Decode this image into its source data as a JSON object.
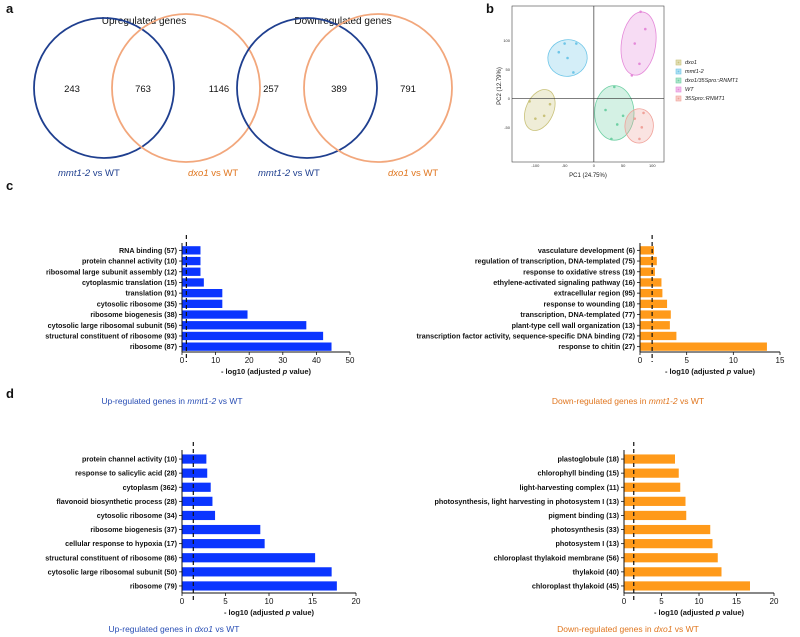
{
  "panels": {
    "a": "a",
    "b": "b",
    "c": "c",
    "d": "d"
  },
  "colors": {
    "blue": "#0b35ff",
    "orange": "#ff9a1a",
    "venn_blue": "#1f3f8f",
    "venn_orange": "#f2a77c",
    "cap_blue": "#2a4fb5",
    "cap_orange": "#e0761f"
  },
  "venn": [
    {
      "title": "Upregulated genes",
      "left": "243",
      "mid": "763",
      "right": "1146",
      "label_left_a": "mmt1-2",
      "label_left_b": " vs WT",
      "label_right_a": "dxo1",
      "label_right_b": "  vs WT"
    },
    {
      "title": "Downregulated genes",
      "left": "257",
      "mid": "389",
      "right": "791",
      "label_left_a": "mmt1-2",
      "label_left_b": "  vs WT",
      "label_right_a": "dxo1",
      "label_right_b": "  vs WT"
    }
  ],
  "pca": {
    "xlabel": "PC1 (24.75%)",
    "ylabel": "PC2 (12.79%)",
    "xticks": [
      "-100",
      "-50",
      "0",
      "50",
      "100"
    ],
    "yticks": [
      "-50",
      "0",
      "50",
      "100"
    ],
    "legend": [
      {
        "name": "dxo1",
        "color": "#c9c27a"
      },
      {
        "name": "mmt1-2",
        "color": "#6fc6e8"
      },
      {
        "name": "dxo1/35Spro::RNMT1",
        "color": "#6fd0a4"
      },
      {
        "name": "WT",
        "color": "#e58ad9"
      },
      {
        "name": "35Spro::RNMT1",
        "color": "#f0a29a"
      }
    ],
    "groups": [
      {
        "name": "dxo1",
        "points": [
          [
            -110,
            -5
          ],
          [
            -85,
            -30
          ],
          [
            -75,
            -10
          ],
          [
            -100,
            -35
          ]
        ]
      },
      {
        "name": "mmt1-2",
        "points": [
          [
            -60,
            80
          ],
          [
            -50,
            95
          ],
          [
            -45,
            70
          ],
          [
            -30,
            95
          ],
          [
            -35,
            45
          ]
        ]
      },
      {
        "name": "dxo1/35Spro::RNMT1",
        "points": [
          [
            35,
            20
          ],
          [
            20,
            -20
          ],
          [
            40,
            -45
          ],
          [
            50,
            -30
          ],
          [
            30,
            -70
          ]
        ]
      },
      {
        "name": "WT",
        "points": [
          [
            80,
            150
          ],
          [
            88,
            120
          ],
          [
            70,
            95
          ],
          [
            78,
            60
          ],
          [
            65,
            40
          ]
        ]
      },
      {
        "name": "35Spro::RNMT1",
        "points": [
          [
            70,
            -35
          ],
          [
            85,
            -25
          ],
          [
            82,
            -50
          ],
          [
            78,
            -70
          ]
        ]
      }
    ],
    "xlim": [
      -140,
      120
    ],
    "ylim": [
      -110,
      160
    ]
  },
  "chart_data": [
    {
      "type": "bar",
      "orientation": "horizontal",
      "title": "Up-regulated genes in mmt1-2 vs WT",
      "caption_a": "Up-regulated genes in ",
      "caption_b": "mmt1-2",
      "caption_c": " vs WT",
      "xlabel_a": "- log10 (adjusted ",
      "xlabel_b": "p",
      "xlabel_c": " value)",
      "categories": [
        "RNA binding (57)",
        "protein channel activity (10)",
        "ribosomal large subunit assembly (12)",
        "cytoplasmic translation (15)",
        "translation (91)",
        "cytosolic ribosome (35)",
        "ribosome biogenesis (38)",
        "cytosolic large ribosomal subunit (56)",
        "structural constituent of ribosome (93)",
        "ribosome (87)"
      ],
      "values": [
        5.5,
        5.5,
        5.5,
        6.5,
        12,
        12,
        19.5,
        37,
        42,
        44.5
      ],
      "xlim": [
        0,
        50
      ],
      "xticks": [
        "0",
        "10",
        "20",
        "30",
        "40",
        "50"
      ],
      "threshold": 1.3,
      "color": "#0b35ff"
    },
    {
      "type": "bar",
      "orientation": "horizontal",
      "title": "Down-regulated genes in mmt1-2 vs WT",
      "caption_a": "Down-regulated genes in ",
      "caption_b": "mmt1-2",
      "caption_c": " vs WT",
      "xlabel_a": "- log10 (adjusted ",
      "xlabel_b": "p",
      "xlabel_c": " value)",
      "categories": [
        "vasculature development (6)",
        "regulation of transcription, DNA-templated (75)",
        "response to oxidative stress (19)",
        "ethylene-activated signaling pathway (16)",
        "extracellular region (95)",
        "response to wounding (18)",
        "transcription, DNA-templated (77)",
        "plant-type cell wall organization (13)",
        "transcription factor activity, sequence-specific DNA binding (72)",
        "response to chitin (27)"
      ],
      "values": [
        1.5,
        1.8,
        1.6,
        2.3,
        2.4,
        2.9,
        3.3,
        3.2,
        3.9,
        13.6
      ],
      "xlim": [
        0,
        15
      ],
      "xticks": [
        "0",
        "5",
        "10",
        "15"
      ],
      "threshold": 1.3,
      "color": "#ff9a1a"
    },
    {
      "type": "bar",
      "orientation": "horizontal",
      "title": "Up-regulated genes in dxo1 vs WT",
      "caption_a": "Up-regulated genes in ",
      "caption_b": "dxo1",
      "caption_c": " vs WT",
      "xlabel_a": "- log10 (adjusted ",
      "xlabel_b": "p",
      "xlabel_c": " value)",
      "categories": [
        "protein channel activity (10)",
        "response to salicylic acid (28)",
        "cytoplasm (362)",
        "flavonoid biosynthetic process (28)",
        "cytosolic ribosome (34)",
        "ribosome biogenesis (37)",
        "cellular response to hypoxia (17)",
        "structural constituent of ribosome (86)",
        "cytosolic large ribosomal subunit (50)",
        "ribosome (79)"
      ],
      "values": [
        2.8,
        2.9,
        3.3,
        3.5,
        3.8,
        9,
        9.5,
        15.3,
        17.2,
        17.8
      ],
      "xlim": [
        0,
        20
      ],
      "xticks": [
        "0",
        "5",
        "10",
        "15",
        "20"
      ],
      "threshold": 1.3,
      "color": "#0b35ff"
    },
    {
      "type": "bar",
      "orientation": "horizontal",
      "title": "Down-regulated genes in dxo1 vs WT",
      "caption_a": "Down-regulated genes in ",
      "caption_b": "dxo1",
      "caption_c": " vs WT",
      "xlabel_a": "- log10 (adjusted ",
      "xlabel_b": "p",
      "xlabel_c": " value)",
      "categories": [
        "plastoglobule (18)",
        "chlorophyll binding (15)",
        "light-harvesting complex (11)",
        "photosynthesis, light harvesting in photosystem I (13)",
        "pigment binding (13)",
        "photosynthesis (33)",
        "photosystem I (13)",
        "chloroplast thylakoid membrane (56)",
        "thylakoid (40)",
        "chloroplast thylakoid (45)"
      ],
      "values": [
        6.8,
        7.3,
        7.5,
        8.2,
        8.3,
        11.5,
        11.8,
        12.5,
        13,
        16.8
      ],
      "xlim": [
        0,
        20
      ],
      "xticks": [
        "0",
        "5",
        "10",
        "15",
        "20"
      ],
      "threshold": 1.3,
      "color": "#ff9a1a"
    }
  ]
}
